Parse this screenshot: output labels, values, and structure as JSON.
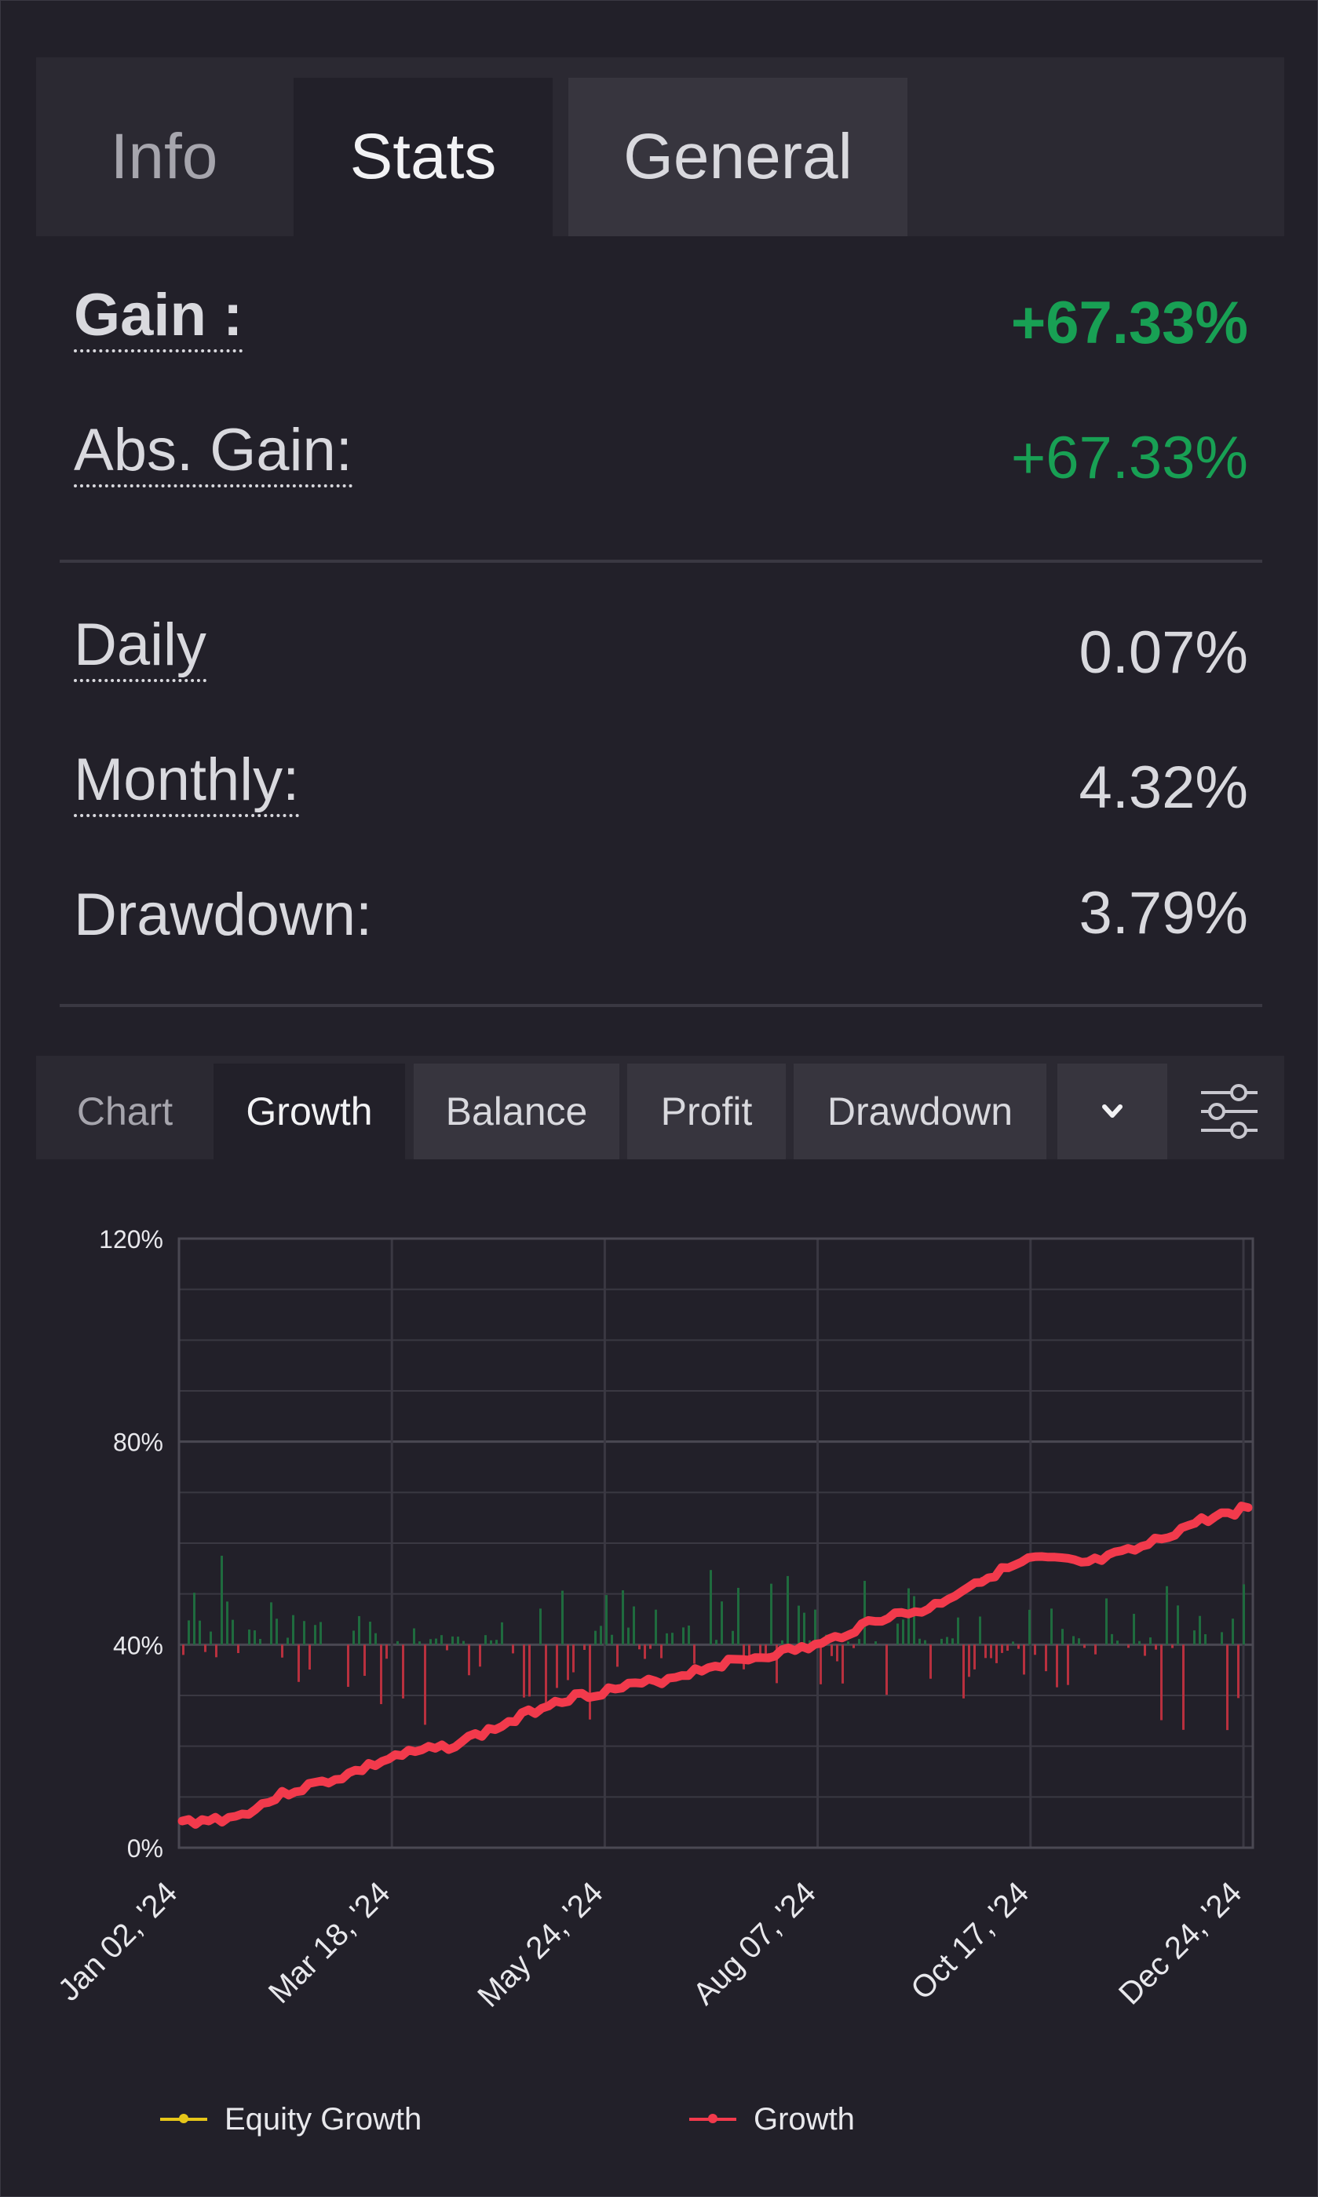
{
  "tabs": {
    "info": "Info",
    "stats": "Stats",
    "general": "General"
  },
  "stats": {
    "gain_label": "Gain :",
    "gain_value": "+67.33%",
    "abs_gain_label": "Abs. Gain:",
    "abs_gain_value": "+67.33%",
    "daily_label": "Daily",
    "daily_value": "0.07%",
    "monthly_label": "Monthly:",
    "monthly_value": "4.32%",
    "drawdown_label": "Drawdown:",
    "drawdown_value": "3.79%"
  },
  "chart_tabs": {
    "label": "Chart",
    "growth": "Growth",
    "balance": "Balance",
    "profit": "Profit",
    "drawdown": "Drawdown",
    "dropdown_icon": "chevron-down-icon",
    "settings_icon": "sliders-icon"
  },
  "colors": {
    "positive": "#18a054",
    "growth_line": "#f23a4c",
    "equity_line": "#e6c619",
    "bar_up": "#1f6b3e",
    "bar_down": "#b8303e"
  },
  "chart_data": {
    "type": "line",
    "ylim": [
      0,
      120
    ],
    "y_ticks": [
      "120%",
      "80%",
      "40%",
      "0%"
    ],
    "x_ticks": [
      "Jan 02, '24",
      "Mar 18, '24",
      "May 24, '24",
      "Aug 07, '24",
      "Oct 17, '24",
      "Dec 24, '24"
    ],
    "grid": true,
    "legend_position": "bottom",
    "series": [
      {
        "name": "Growth",
        "x": [
          "Jan 02, '24",
          "Jan 15, '24",
          "Feb 01, '24",
          "Feb 20, '24",
          "Mar 18, '24",
          "Apr 01, '24",
          "Apr 20, '24",
          "May 10, '24",
          "May 24, '24",
          "Jun 10, '24",
          "Jul 01, '24",
          "Jul 20, '24",
          "Aug 07, '24",
          "Aug 25, '24",
          "Sep 10, '24",
          "Sep 25, '24",
          "Oct 17, '24",
          "Nov 05, '24",
          "Nov 25, '24",
          "Dec 10, '24",
          "Dec 24, '24"
        ],
        "y": [
          5,
          6,
          11,
          14,
          18,
          20,
          24,
          29,
          31,
          33,
          36,
          38,
          40,
          45,
          47,
          53,
          57,
          56,
          59,
          64,
          67
        ]
      },
      {
        "name": "Equity Growth",
        "x": [],
        "y": []
      }
    ]
  },
  "legend": {
    "equity": "Equity Growth",
    "growth": "Growth"
  }
}
